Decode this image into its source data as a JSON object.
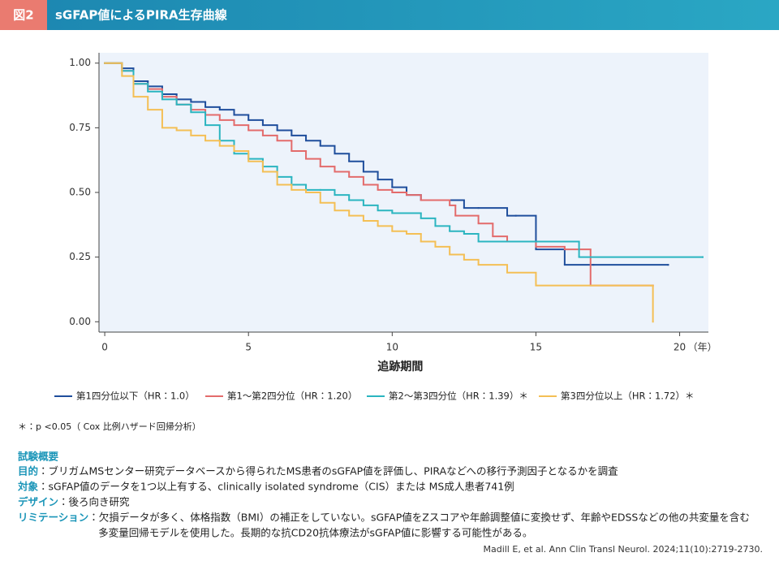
{
  "header": {
    "badge": "図2",
    "title": "sGFAP値によるPIRA生存曲線"
  },
  "chart_data": {
    "type": "step",
    "xlabel": "追跡期間",
    "x_unit": "（年）",
    "xlim": [
      -0.2,
      21
    ],
    "ylim": [
      -0.04,
      1.04
    ],
    "xticks": [
      0,
      5,
      10,
      15,
      20
    ],
    "yticks": [
      {
        "value": 0,
        "label": "0.00"
      },
      {
        "value": 0.25,
        "label": "0.25"
      },
      {
        "value": 0.5,
        "label": "0.50"
      },
      {
        "value": 0.75,
        "label": "0.75"
      },
      {
        "value": 1,
        "label": "1.00"
      }
    ],
    "grid": false,
    "legend": "bottom",
    "series": [
      {
        "name": "第1四分位以下（HR：1.0）",
        "color": "#1f4e9c",
        "x": [
          0,
          0.6,
          1,
          1.5,
          2,
          2.5,
          3,
          3.5,
          4,
          4.5,
          5,
          5.5,
          6,
          6.5,
          7,
          7.5,
          8,
          8.5,
          9,
          9.5,
          10,
          10.5,
          11,
          12,
          12.5,
          13,
          14,
          14.3,
          15,
          16,
          17,
          19.6
        ],
        "values": [
          1,
          0.98,
          0.93,
          0.91,
          0.88,
          0.86,
          0.85,
          0.83,
          0.82,
          0.8,
          0.78,
          0.76,
          0.74,
          0.72,
          0.7,
          0.68,
          0.65,
          0.62,
          0.58,
          0.55,
          0.52,
          0.49,
          0.47,
          0.47,
          0.44,
          0.44,
          0.41,
          0.41,
          0.28,
          0.22,
          0.22,
          0.22
        ]
      },
      {
        "name": "第1～第2四分位（HR：1.20）",
        "color": "#e36b6b",
        "x": [
          0,
          0.6,
          1,
          1.5,
          2,
          2.5,
          3,
          3.5,
          4,
          4.5,
          5,
          5.5,
          6,
          6.5,
          7,
          7.5,
          8,
          8.5,
          9,
          9.5,
          10,
          10.5,
          11,
          12,
          12.2,
          13,
          13.5,
          14,
          15,
          16,
          16.9,
          19.07
        ],
        "values": [
          1,
          0.97,
          0.92,
          0.9,
          0.87,
          0.84,
          0.82,
          0.8,
          0.78,
          0.76,
          0.74,
          0.72,
          0.7,
          0.66,
          0.63,
          0.6,
          0.58,
          0.56,
          0.53,
          0.51,
          0.5,
          0.49,
          0.47,
          0.45,
          0.41,
          0.38,
          0.33,
          0.31,
          0.29,
          0.28,
          0.14,
          0.14
        ]
      },
      {
        "name": "第2～第3四分位（HR：1.39）＊",
        "color": "#2bb5c0",
        "x": [
          0,
          0.6,
          1,
          1.5,
          2,
          2.5,
          3,
          3.5,
          4,
          4.5,
          5,
          5.5,
          6,
          6.5,
          7,
          7.5,
          8,
          8.5,
          9,
          9.5,
          10,
          11,
          11.5,
          12,
          12.5,
          13,
          14,
          16,
          16.5,
          20.8
        ],
        "values": [
          1,
          0.97,
          0.92,
          0.89,
          0.86,
          0.84,
          0.81,
          0.76,
          0.7,
          0.65,
          0.63,
          0.6,
          0.56,
          0.53,
          0.51,
          0.51,
          0.49,
          0.47,
          0.45,
          0.43,
          0.42,
          0.4,
          0.37,
          0.35,
          0.34,
          0.31,
          0.31,
          0.31,
          0.25,
          0.25
        ]
      },
      {
        "name": "第3四分位以上（HR：1.72）＊",
        "color": "#f4bf55",
        "x": [
          0,
          0.6,
          1,
          1.5,
          2,
          2.5,
          3,
          3.5,
          4,
          4.5,
          5,
          5.5,
          6,
          6.5,
          7,
          7.5,
          8,
          8.5,
          9,
          9.5,
          10,
          10.5,
          11,
          11.5,
          12,
          12.5,
          13,
          14,
          15,
          19,
          19.07
        ],
        "values": [
          1,
          0.95,
          0.87,
          0.82,
          0.75,
          0.74,
          0.72,
          0.7,
          0.68,
          0.66,
          0.62,
          0.58,
          0.53,
          0.51,
          0.5,
          0.46,
          0.43,
          0.41,
          0.39,
          0.37,
          0.35,
          0.34,
          0.31,
          0.29,
          0.26,
          0.24,
          0.22,
          0.19,
          0.14,
          0.14,
          0
        ]
      }
    ]
  },
  "footnote": "＊：p <0.05（ Cox 比例ハザード回帰分析）",
  "summary": {
    "heading": "試験概要",
    "items": [
      {
        "label": "目的",
        "lines": [
          "：ブリガムMSセンター研究データベースから得られたMS患者のsGFAP値を評価し、PIRAなどへの移行予測因子となるかを調査"
        ]
      },
      {
        "label": "対象",
        "lines": [
          "：sGFAP値のデータを1つ以上有する、clinically isolated syndrome（CIS）または MS成人患者741例"
        ]
      },
      {
        "label": "デザイン",
        "lines": [
          "：後ろ向き研究"
        ]
      },
      {
        "label": "リミテーション",
        "lines": [
          "：欠損データが多く、体格指数（BMI）の補正をしていない。sGFAP値をZスコアや年齢調整値に変換せず、年齢やEDSSなどの他の共変量を含む",
          "多変量回帰モデルを使用した。長期的な抗CD20抗体療法がsGFAP値に影響する可能性がある。"
        ]
      }
    ]
  },
  "citation": "Madill E, et al. Ann Clin Transl Neurol. 2024;11(10):2719-2730."
}
